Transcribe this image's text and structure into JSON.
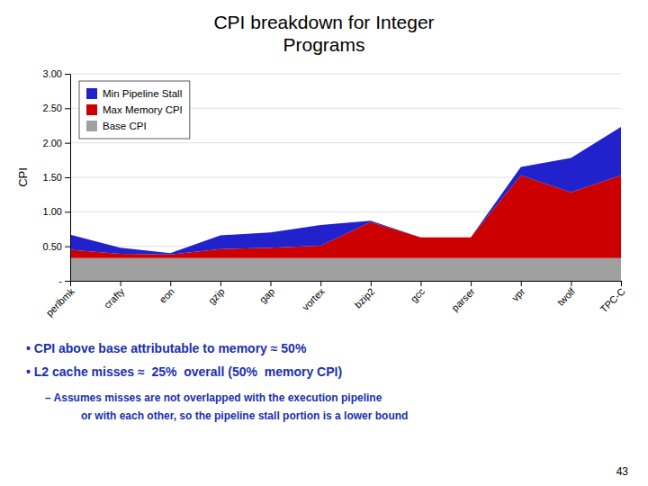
{
  "chart_data": {
    "type": "area",
    "stacked": true,
    "title": [
      "CPI breakdown for Integer",
      "Programs"
    ],
    "y_label": "CPI",
    "categories": [
      "perlbmk",
      "crafty",
      "eon",
      "gzip",
      "gap",
      "vortex",
      "bzip2",
      "gcc",
      "parser",
      "vpr",
      "twolf",
      "TPC-C"
    ],
    "series": [
      {
        "name": "Base CPI",
        "color": "#a0a0a0",
        "values": [
          0.33,
          0.33,
          0.33,
          0.33,
          0.33,
          0.33,
          0.33,
          0.33,
          0.33,
          0.33,
          0.33,
          0.33
        ]
      },
      {
        "name": "Max Memory CPI",
        "color": "#cc0000",
        "values": [
          0.12,
          0.06,
          0.05,
          0.13,
          0.15,
          0.18,
          0.52,
          0.3,
          0.3,
          1.2,
          0.95,
          1.2
        ]
      },
      {
        "name": "Min Pipeline Stall",
        "color": "#2222cc",
        "values": [
          0.22,
          0.09,
          0.02,
          0.2,
          0.22,
          0.3,
          0.02,
          0.0,
          0.0,
          0.12,
          0.5,
          0.7
        ]
      }
    ],
    "ylim": [
      0,
      3
    ],
    "yticks": [
      {
        "value": 0,
        "label": "-"
      },
      {
        "value": 0.5,
        "label": "0.50"
      },
      {
        "value": 1,
        "label": "1.00"
      },
      {
        "value": 1.5,
        "label": "1.50"
      },
      {
        "value": 2,
        "label": "2.00"
      },
      {
        "value": 2.5,
        "label": "2.50"
      },
      {
        "value": 3,
        "label": "3.00"
      }
    ],
    "grid": true,
    "legend": "upper left",
    "annotations": [
      "• CPI above base attributable to memory ≈ 50%",
      "• L2 cache misses ≈  25%  overall (50%  memory CPI)",
      "– Assumes misses are not overlapped with the execution pipeline",
      "or with each other, so the pipeline stall portion is a lower bound",
      "43"
    ]
  }
}
